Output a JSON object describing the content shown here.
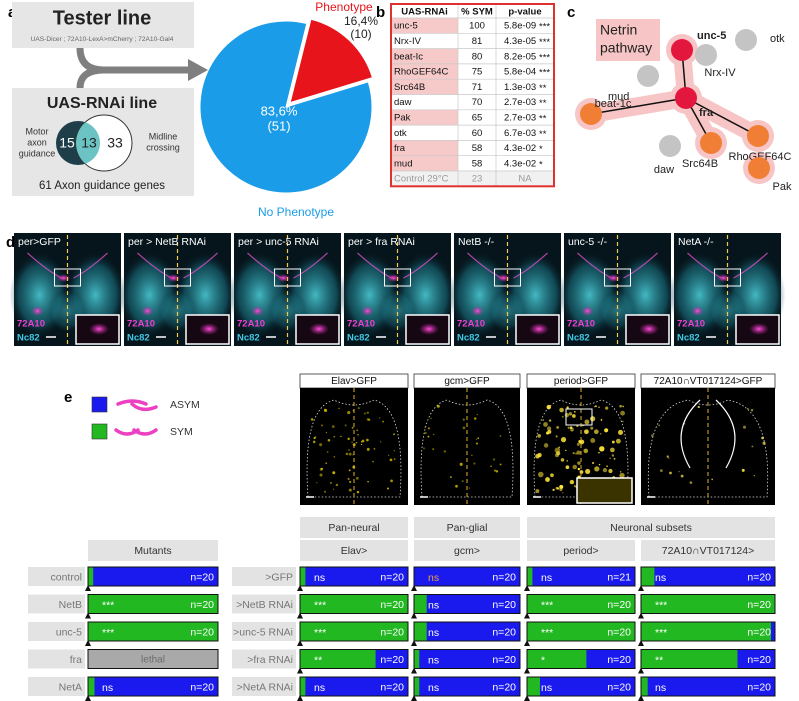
{
  "panel_labels": [
    "a",
    "b",
    "c",
    "d",
    "e"
  ],
  "tester": {
    "title": "Tester line",
    "genotype": "UAS-Dicer ; 72A10-LexA>mCherry ; 72A10-Gal4"
  },
  "rnai": {
    "title": "UAS-RNAi line",
    "left_count": "15",
    "overlap_count": "13",
    "right_count": "33",
    "left_label": [
      "Motor",
      "axon",
      "guidance"
    ],
    "right_label": [
      "Midline",
      "crossing"
    ],
    "footer": "61 Axon guidance genes"
  },
  "chart_data": {
    "type": "pie",
    "categories": [
      "Phenotype",
      "No Phenotype"
    ],
    "values": [
      16.4,
      83.6
    ],
    "value_labels": [
      "16,4%",
      "83,6%"
    ],
    "count_labels": [
      "(10)",
      "(51)"
    ],
    "colors": [
      "#e8141b",
      "#1b9ce8"
    ]
  },
  "table": {
    "headers": [
      "UAS-RNAi",
      "% SYM",
      "p-value"
    ],
    "rows": [
      [
        "unc-5",
        "100",
        "5.8e-09",
        "***"
      ],
      [
        "Nrx-IV",
        "81",
        "4.3e-05",
        "***"
      ],
      [
        "beat-Ic",
        "80",
        "8.2e-05",
        "***"
      ],
      [
        "RhoGEF64C",
        "75",
        "5.8e-04",
        "***"
      ],
      [
        "Src64B",
        "71",
        "1.3e-03",
        "**"
      ],
      [
        "daw",
        "70",
        "2.7e-03",
        "**"
      ],
      [
        "Pak",
        "65",
        "2.7e-03",
        "**"
      ],
      [
        "otk",
        "60",
        "6.7e-03",
        "**"
      ],
      [
        "fra",
        "58",
        "4.3e-02",
        "*"
      ],
      [
        "mud",
        "58",
        "4.3e-02",
        "*"
      ],
      [
        "Control 29°C",
        "23",
        "NA"
      ]
    ],
    "highlighted": [
      true,
      false,
      true,
      true,
      true,
      false,
      true,
      false,
      true,
      true,
      false
    ],
    "highlight_color": "#f7caca",
    "muted_rows": [
      10
    ],
    "border_color": "#e03131"
  },
  "network": {
    "title": [
      "Netrin",
      "pathway"
    ],
    "nodes": [
      {
        "label": "unc-5",
        "color": "#e3173e",
        "halo": true,
        "bold": true
      },
      {
        "label": "fra",
        "color": "#e3173e",
        "halo": true,
        "bold": true
      },
      {
        "label": "mud",
        "color": "#f07f35",
        "halo": true
      },
      {
        "label": "RhoGEF64C",
        "color": "#f07f35",
        "halo": true
      },
      {
        "label": "Src64B",
        "color": "#f07f35",
        "halo": true
      },
      {
        "label": "Pak",
        "color": "#f07f35",
        "halo": true
      },
      {
        "label": "otk",
        "color": "#c4c4c4"
      },
      {
        "label": "Nrx-IV",
        "color": "#c4c4c4"
      },
      {
        "label": "beat-1c",
        "color": "#c4c4c4"
      },
      {
        "label": "daw",
        "color": "#c4c4c4"
      }
    ],
    "edges": [
      [
        1,
        0
      ],
      [
        1,
        2
      ],
      [
        1,
        3
      ],
      [
        1,
        4
      ]
    ],
    "halo_color": "#f7c5c5"
  },
  "brain_images": [
    {
      "title": "per>GFP",
      "stain1": "72A10",
      "stain2": "Nc82"
    },
    {
      "title": "per > NetB RNAi",
      "stain1": "72A10",
      "stain2": "Nc82"
    },
    {
      "title": "per > unc-5 RNAi",
      "stain1": "72A10",
      "stain2": "Nc82"
    },
    {
      "title": "per > fra RNAi",
      "stain1": "72A10",
      "stain2": "Nc82"
    },
    {
      "title": "NetB -/-",
      "stain1": "72A10",
      "stain2": "Nc82"
    },
    {
      "title": "unc-5 -/-",
      "stain1": "72A10",
      "stain2": "Nc82"
    },
    {
      "title": "NetA -/-",
      "stain1": "72A10",
      "stain2": "Nc82"
    }
  ],
  "legend": [
    {
      "label": "ASYM",
      "color": "#1a1aef"
    },
    {
      "label": "SYM",
      "color": "#22b822"
    }
  ],
  "expression_images": [
    "Elav>GFP",
    "gcm>GFP",
    "period>GFP",
    "72A10∩VT017124>GFP"
  ],
  "mutants": {
    "header": "Mutants",
    "rows": [
      {
        "name": "control",
        "sym": 4,
        "n": "n=20"
      },
      {
        "name": "NetB",
        "sym": 100,
        "sig": "***",
        "n": "n=20"
      },
      {
        "name": "unc-5",
        "sym": 100,
        "sig": "***",
        "n": "n=20"
      },
      {
        "name": "fra",
        "lethal": "lethal"
      },
      {
        "name": "NetA",
        "sym": 5,
        "sig": "ns",
        "n": "n=20"
      }
    ]
  },
  "screen": {
    "category_headers": [
      "Pan-neural",
      "Pan-glial",
      "Neuronal subsets"
    ],
    "row_labels": [
      ">GFP",
      ">NetB RNAi",
      ">unc-5 RNAi",
      ">fra RNAi",
      ">NetA RNAi"
    ],
    "groups": [
      {
        "driver": "Elav>",
        "rows": [
          {
            "sym": 5,
            "sig": "ns",
            "n": "n=20"
          },
          {
            "sym": 100,
            "sig": "***",
            "n": "n=20"
          },
          {
            "sym": 100,
            "sig": "***",
            "n": "n=20"
          },
          {
            "sym": 70,
            "sig": "**",
            "n": "n=20"
          },
          {
            "sym": 5,
            "sig": "ns",
            "n": "n=20"
          }
        ]
      },
      {
        "driver": "gcm>",
        "rows": [
          {
            "sym": 0,
            "sig": "ns",
            "n": "n=20",
            "sig_color": "#eea23c"
          },
          {
            "sym": 12,
            "sig": "ns",
            "n": "n=20"
          },
          {
            "sym": 12,
            "sig": "ns",
            "n": "n=20"
          },
          {
            "sym": 5,
            "sig": "ns",
            "n": "n=20"
          },
          {
            "sym": 5,
            "sig": "ns",
            "n": "n=20"
          }
        ]
      },
      {
        "driver": "period>",
        "rows": [
          {
            "sym": 5,
            "sig": "ns",
            "n": "n=21"
          },
          {
            "sym": 100,
            "sig": "***",
            "n": "n=20"
          },
          {
            "sym": 100,
            "sig": "***",
            "n": "n=20"
          },
          {
            "sym": 55,
            "sig": "*",
            "n": "n=20"
          },
          {
            "sym": 12,
            "sig": "ns",
            "n": "n=20"
          }
        ]
      },
      {
        "driver": "72A10∩VT017124>",
        "rows": [
          {
            "sym": 10,
            "sig": "ns",
            "n": "n=20"
          },
          {
            "sym": 100,
            "sig": "***",
            "n": "n=20"
          },
          {
            "sym": 97,
            "sig": "***",
            "n": "n=20"
          },
          {
            "sym": 72,
            "sig": "**",
            "n": "n=20"
          },
          {
            "sym": 5,
            "sig": "ns",
            "n": "n=20"
          }
        ]
      }
    ]
  }
}
